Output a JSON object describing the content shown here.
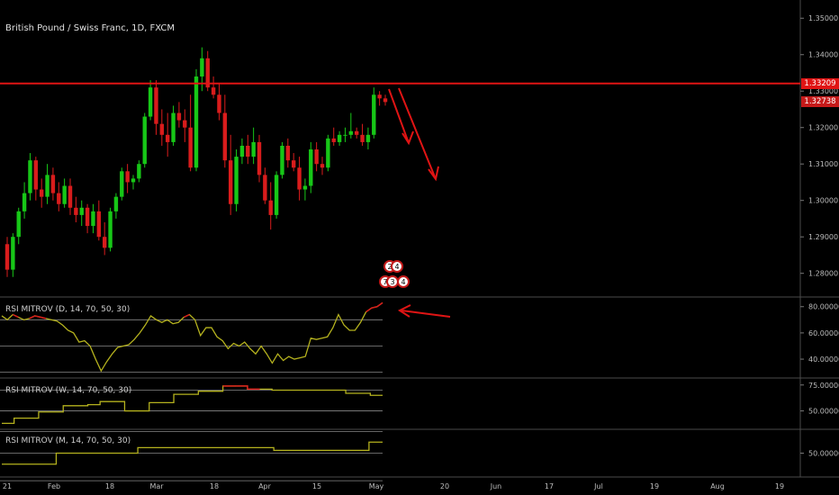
{
  "symbol_title": "British Pound / Swiss Franc, 1D, FXCM",
  "colors": {
    "bull": "#17c717",
    "bear": "#d91c1c",
    "resistance": "#e01414",
    "rsi_line": "#b5b21e",
    "background": "#000000"
  },
  "price_badges": {
    "resistance": "1.33209",
    "last": "1.32738"
  },
  "chart_data": [
    {
      "type": "candlestick",
      "title": "British Pound / Swiss Franc, 1D, FXCM",
      "y_ticks": [
        "1.35000",
        "1.34000",
        "1.33000",
        "1.32000",
        "1.31000",
        "1.30000",
        "1.29000",
        "1.28000"
      ],
      "ylim": [
        1.2735,
        1.355
      ],
      "x_ticks": [
        "21",
        "Feb",
        "18",
        "Mar",
        "18",
        "Apr",
        "15",
        "May",
        "20",
        "Jun",
        "17",
        "Jul",
        "19",
        "Aug",
        "19"
      ],
      "resistance_level": 1.33209,
      "candles": [
        [
          1.288,
          1.29,
          1.279,
          1.281
        ],
        [
          1.281,
          1.291,
          1.279,
          1.29
        ],
        [
          1.29,
          1.298,
          1.288,
          1.297
        ],
        [
          1.297,
          1.305,
          1.295,
          1.302
        ],
        [
          1.302,
          1.313,
          1.3,
          1.311
        ],
        [
          1.311,
          1.312,
          1.3,
          1.303
        ],
        [
          1.303,
          1.306,
          1.298,
          1.301
        ],
        [
          1.301,
          1.31,
          1.299,
          1.307
        ],
        [
          1.307,
          1.309,
          1.3,
          1.302
        ],
        [
          1.302,
          1.305,
          1.297,
          1.299
        ],
        [
          1.299,
          1.306,
          1.298,
          1.304
        ],
        [
          1.304,
          1.306,
          1.296,
          1.298
        ],
        [
          1.298,
          1.301,
          1.294,
          1.296
        ],
        [
          1.296,
          1.3,
          1.293,
          1.298
        ],
        [
          1.298,
          1.299,
          1.291,
          1.293
        ],
        [
          1.293,
          1.299,
          1.291,
          1.297
        ],
        [
          1.297,
          1.3,
          1.289,
          1.29
        ],
        [
          1.29,
          1.294,
          1.285,
          1.287
        ],
        [
          1.287,
          1.298,
          1.286,
          1.297
        ],
        [
          1.297,
          1.302,
          1.295,
          1.301
        ],
        [
          1.301,
          1.309,
          1.3,
          1.308
        ],
        [
          1.308,
          1.31,
          1.302,
          1.305
        ],
        [
          1.305,
          1.307,
          1.303,
          1.306
        ],
        [
          1.306,
          1.311,
          1.305,
          1.31
        ],
        [
          1.31,
          1.324,
          1.309,
          1.323
        ],
        [
          1.323,
          1.333,
          1.322,
          1.331
        ],
        [
          1.331,
          1.333,
          1.318,
          1.321
        ],
        [
          1.321,
          1.325,
          1.315,
          1.318
        ],
        [
          1.318,
          1.324,
          1.312,
          1.316
        ],
        [
          1.316,
          1.326,
          1.315,
          1.324
        ],
        [
          1.324,
          1.327,
          1.32,
          1.322
        ],
        [
          1.322,
          1.325,
          1.316,
          1.32
        ],
        [
          1.32,
          1.329,
          1.308,
          1.309
        ],
        [
          1.309,
          1.336,
          1.308,
          1.334
        ],
        [
          1.334,
          1.342,
          1.33,
          1.339
        ],
        [
          1.339,
          1.341,
          1.33,
          1.331
        ],
        [
          1.331,
          1.334,
          1.328,
          1.329
        ],
        [
          1.329,
          1.332,
          1.322,
          1.324
        ],
        [
          1.324,
          1.329,
          1.309,
          1.311
        ],
        [
          1.311,
          1.318,
          1.296,
          1.299
        ],
        [
          1.299,
          1.314,
          1.297,
          1.312
        ],
        [
          1.312,
          1.317,
          1.31,
          1.315
        ],
        [
          1.315,
          1.318,
          1.31,
          1.312
        ],
        [
          1.312,
          1.32,
          1.31,
          1.316
        ],
        [
          1.316,
          1.318,
          1.305,
          1.307
        ],
        [
          1.307,
          1.309,
          1.299,
          1.3
        ],
        [
          1.3,
          1.305,
          1.292,
          1.296
        ],
        [
          1.296,
          1.308,
          1.295,
          1.307
        ],
        [
          1.307,
          1.316,
          1.306,
          1.315
        ],
        [
          1.315,
          1.317,
          1.309,
          1.311
        ],
        [
          1.311,
          1.313,
          1.308,
          1.309
        ],
        [
          1.309,
          1.312,
          1.3,
          1.303
        ],
        [
          1.303,
          1.306,
          1.3,
          1.304
        ],
        [
          1.304,
          1.316,
          1.302,
          1.314
        ],
        [
          1.314,
          1.316,
          1.308,
          1.31
        ],
        [
          1.31,
          1.312,
          1.307,
          1.309
        ],
        [
          1.309,
          1.318,
          1.308,
          1.317
        ],
        [
          1.317,
          1.32,
          1.315,
          1.316
        ],
        [
          1.316,
          1.319,
          1.315,
          1.318
        ],
        [
          1.318,
          1.32,
          1.316,
          1.318
        ],
        [
          1.318,
          1.324,
          1.317,
          1.319
        ],
        [
          1.319,
          1.32,
          1.317,
          1.318
        ],
        [
          1.318,
          1.321,
          1.315,
          1.316
        ],
        [
          1.316,
          1.32,
          1.314,
          1.318
        ],
        [
          1.318,
          1.331,
          1.317,
          1.329
        ],
        [
          1.329,
          1.33,
          1.326,
          1.328
        ],
        [
          1.328,
          1.329,
          1.326,
          1.327
        ]
      ]
    },
    {
      "type": "line",
      "name": "RSI MITROV (D, 14, 70, 50, 30)",
      "y_ticks": [
        "80.00000",
        "60.00000",
        "40.00000"
      ],
      "ylim": [
        27,
        86
      ],
      "levels": [
        70,
        50,
        30
      ],
      "values": [
        73,
        70,
        74,
        72,
        70,
        71,
        73,
        72,
        71,
        70,
        69,
        66,
        62,
        60,
        53,
        54,
        50,
        40,
        31,
        38,
        44,
        49,
        50,
        51,
        55,
        60,
        66,
        73,
        70,
        68,
        70,
        67,
        68,
        72,
        74,
        70,
        58,
        64,
        64,
        57,
        54,
        48,
        52,
        50,
        53,
        48,
        44,
        50,
        44,
        37,
        44,
        39,
        42,
        40,
        41,
        42,
        56,
        55,
        56,
        57,
        64,
        74,
        66,
        62,
        62,
        68,
        76,
        79,
        80,
        83
      ]
    },
    {
      "type": "line",
      "name": "RSI MITROV (W, 14, 70, 50, 30)",
      "y_ticks": [
        "75.00000",
        "50.00000"
      ],
      "ylim": [
        34,
        80
      ],
      "levels": [
        70,
        50,
        30
      ],
      "values": [
        38,
        43,
        43,
        49,
        49,
        55,
        55,
        56,
        59,
        59,
        50,
        50,
        58,
        58,
        66,
        66,
        69,
        69,
        74,
        74,
        71,
        71,
        70,
        70,
        70,
        70,
        70,
        70,
        67,
        67,
        65,
        65
      ]
    },
    {
      "type": "line",
      "name": "RSI MITROV (M, 14, 70, 50, 30)",
      "y_ticks": [
        "50.00000"
      ],
      "ylim": [
        34,
        66
      ],
      "levels": [
        50,
        30
      ],
      "values": [
        42,
        42,
        42,
        42,
        50,
        50,
        50,
        50,
        50,
        50,
        54,
        54,
        54,
        54,
        54,
        54,
        54,
        54,
        54,
        54,
        52,
        52,
        52,
        52,
        52,
        52,
        52,
        58,
        58
      ]
    }
  ],
  "annotation_marks": [
    "2",
    "4",
    "7",
    "3",
    "4"
  ]
}
